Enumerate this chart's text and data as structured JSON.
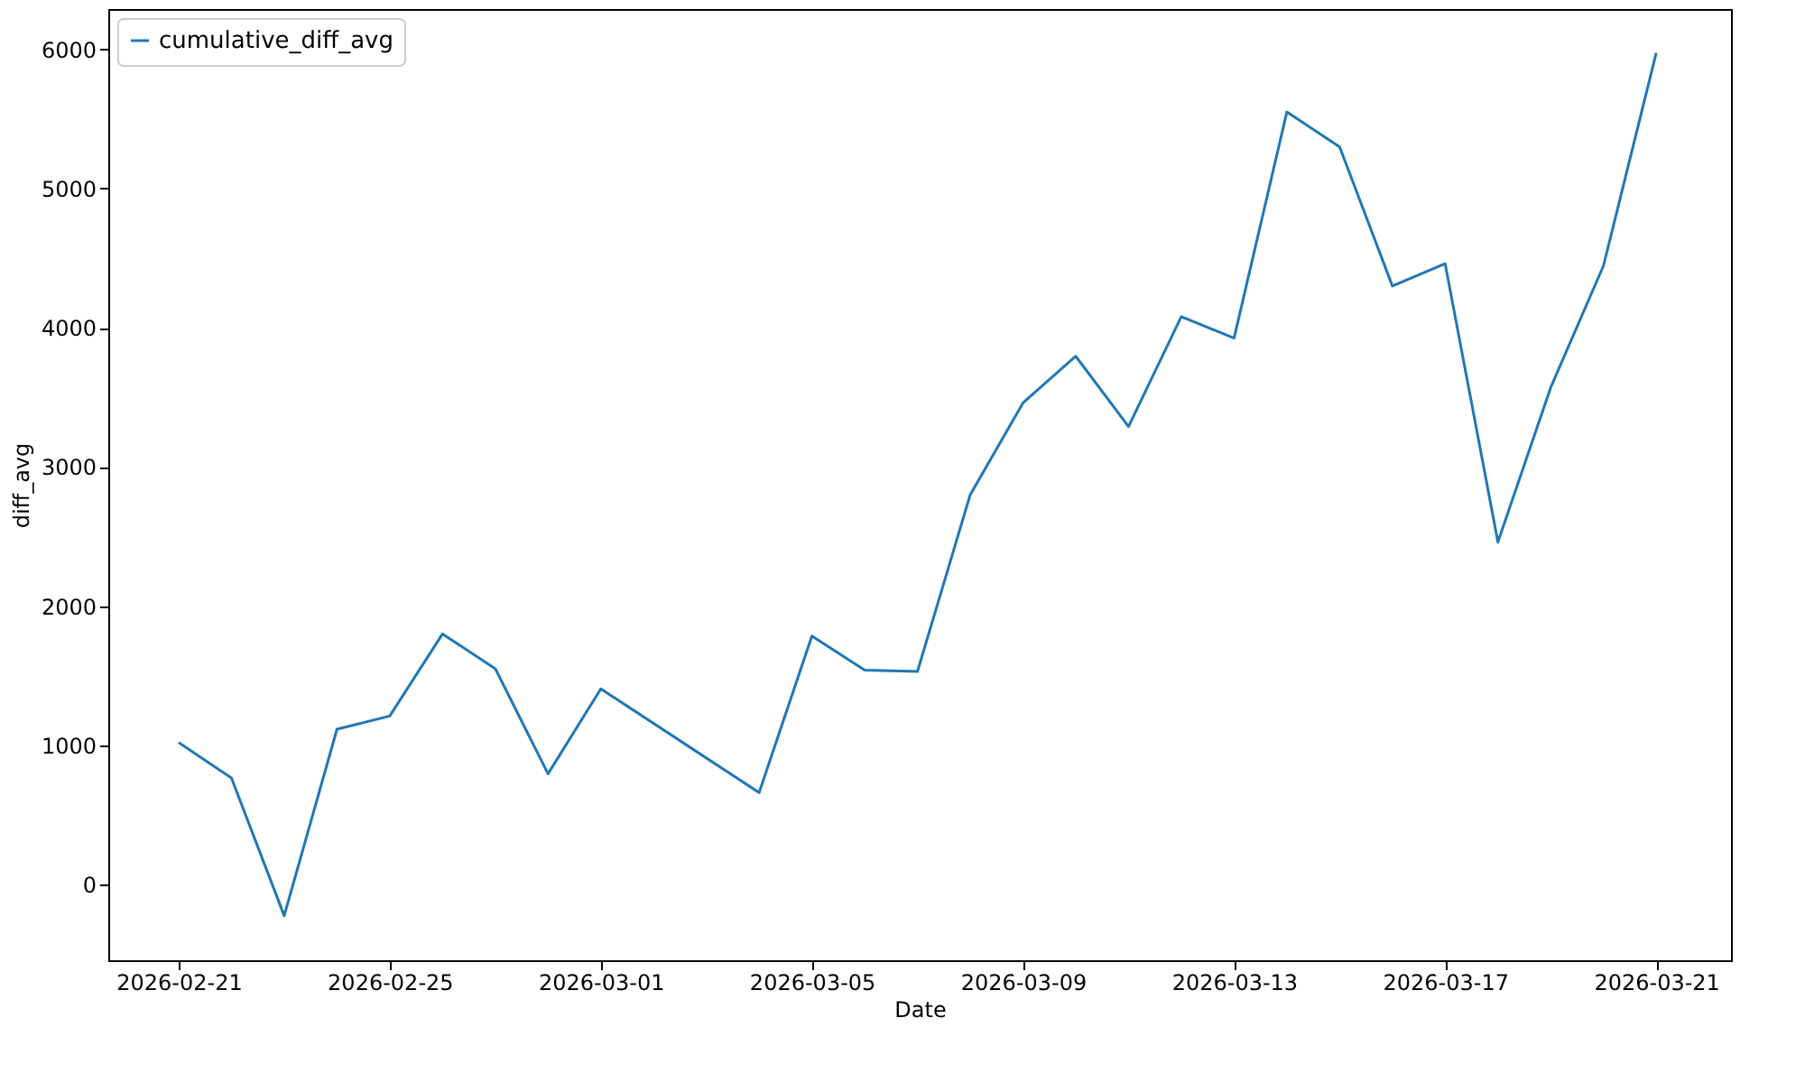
{
  "chart_data": {
    "type": "line",
    "xlabel": "Date",
    "ylabel": "diff_avg",
    "x": [
      "2026-02-21",
      "2026-02-22",
      "2026-02-23",
      "2026-02-24",
      "2026-02-25",
      "2026-02-26",
      "2026-02-27",
      "2026-02-28",
      "2026-03-01",
      "2026-03-04",
      "2026-03-05",
      "2026-03-06",
      "2026-03-07",
      "2026-03-08",
      "2026-03-09",
      "2026-03-10",
      "2026-03-11",
      "2026-03-12",
      "2026-03-13",
      "2026-03-14",
      "2026-03-15",
      "2026-03-16",
      "2026-03-17",
      "2026-03-18",
      "2026-03-19",
      "2026-03-20",
      "2026-03-21"
    ],
    "series": [
      {
        "name": "cumulative_diff_avg",
        "color": "#1f77b4",
        "values": [
          1020,
          765,
          -225,
          1115,
          1210,
          1800,
          1550,
          795,
          1405,
          660,
          1785,
          1540,
          1530,
          2800,
          3460,
          3795,
          3290,
          4080,
          3925,
          5550,
          5300,
          4300,
          4460,
          2460,
          3570,
          4445,
          5975
        ]
      }
    ],
    "xlim": [
      "2026-02-19T16:00",
      "2026-03-22T10:00"
    ],
    "xticks": [
      "2026-02-21",
      "2026-02-25",
      "2026-03-01",
      "2026-03-05",
      "2026-03-09",
      "2026-03-13",
      "2026-03-17",
      "2026-03-21"
    ],
    "ylim": [
      -545,
      6290
    ],
    "yticks": [
      0,
      1000,
      2000,
      3000,
      4000,
      5000,
      6000
    ],
    "grid": false,
    "legend": "top left",
    "marker": "none",
    "line_style": "solid"
  }
}
